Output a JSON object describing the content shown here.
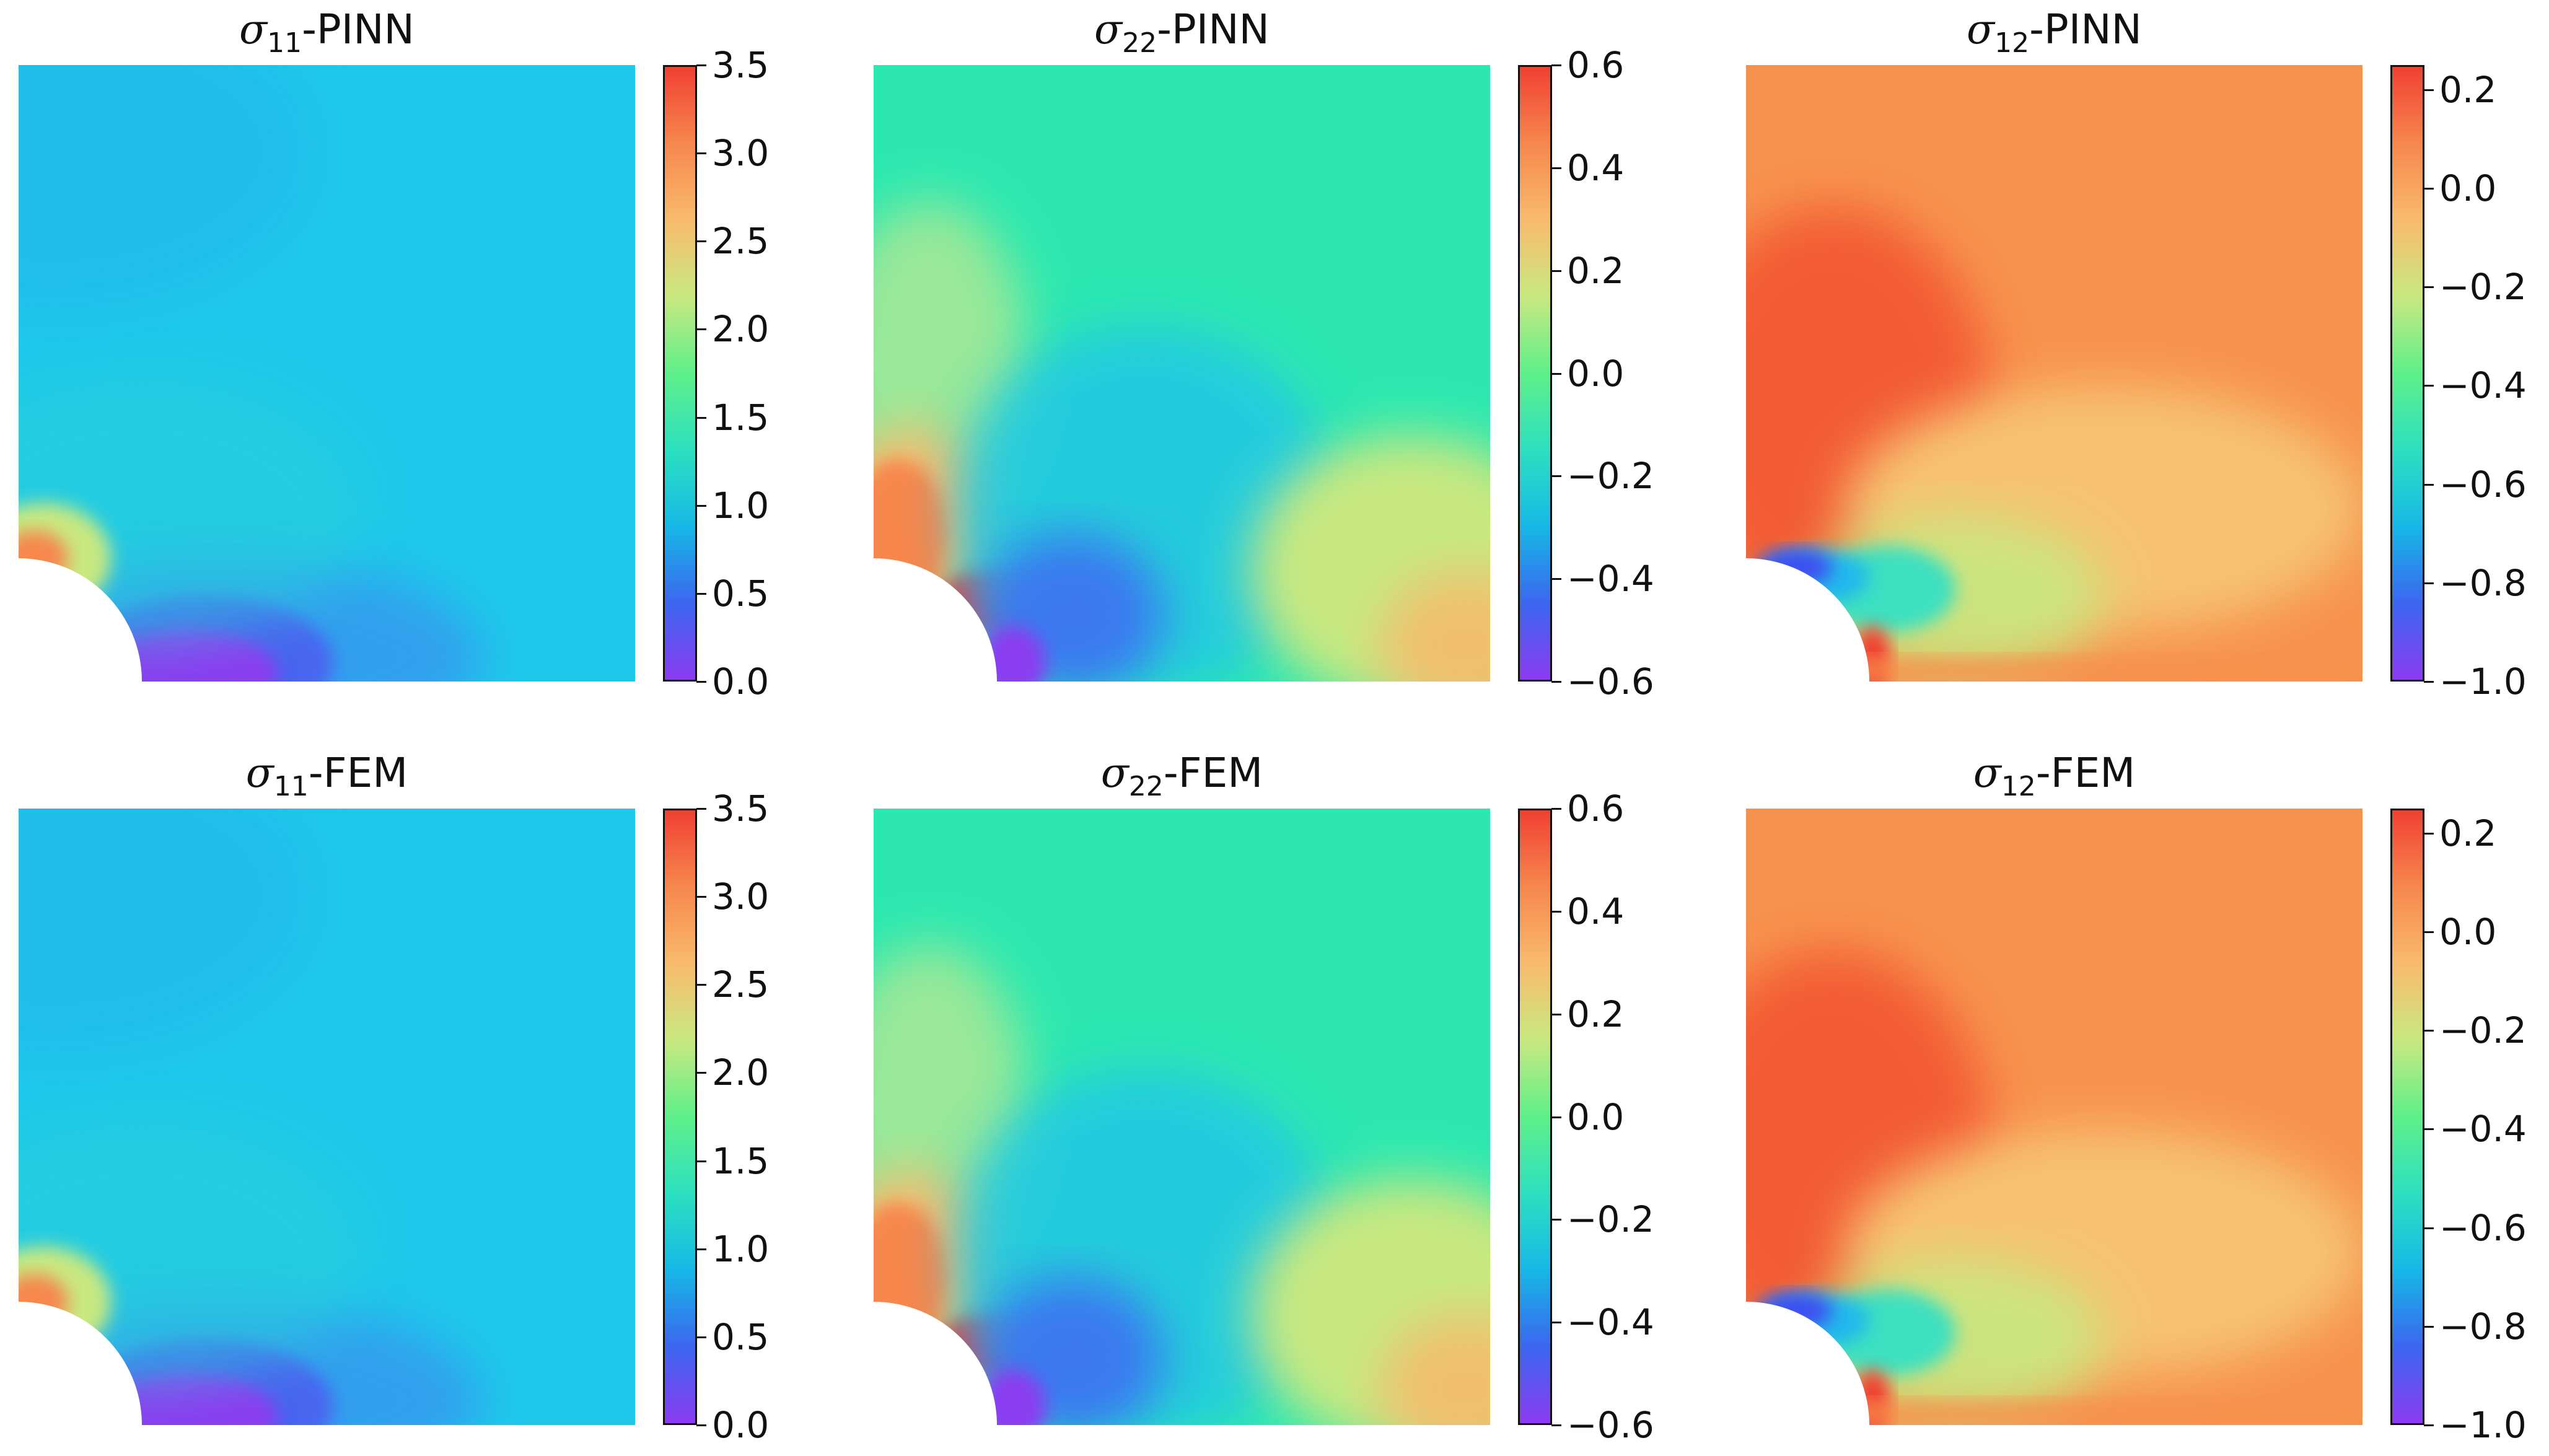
{
  "chart_data": [
    {
      "type": "heatmap",
      "title_symbol": "σ",
      "title_sub": "11",
      "title_suffix": "-PINN",
      "colorbar": {
        "min": 0.0,
        "max": 3.5,
        "ticks": [
          "0.0",
          "0.5",
          "1.0",
          "1.5",
          "2.0",
          "2.5",
          "3.0",
          "3.5"
        ]
      },
      "field": "s11"
    },
    {
      "type": "heatmap",
      "title_symbol": "σ",
      "title_sub": "22",
      "title_suffix": "-PINN",
      "colorbar": {
        "min": -0.6,
        "max": 0.6,
        "ticks": [
          "−0.6",
          "−0.4",
          "−0.2",
          "0.0",
          "0.2",
          "0.4",
          "0.6"
        ]
      },
      "field": "s22"
    },
    {
      "type": "heatmap",
      "title_symbol": "σ",
      "title_sub": "12",
      "title_suffix": "-PINN",
      "colorbar": {
        "min": -1.0,
        "max": 0.25,
        "ticks": [
          "−1.0",
          "−0.8",
          "−0.6",
          "−0.4",
          "−0.2",
          "0.0",
          "0.2"
        ],
        "tick_values": [
          -1.0,
          -0.8,
          -0.6,
          -0.4,
          -0.2,
          0.0,
          0.2
        ]
      },
      "field": "s12"
    },
    {
      "type": "heatmap",
      "title_symbol": "σ",
      "title_sub": "11",
      "title_suffix": "-FEM",
      "colorbar": {
        "min": 0.0,
        "max": 3.5,
        "ticks": [
          "0.0",
          "0.5",
          "1.0",
          "1.5",
          "2.0",
          "2.5",
          "3.0",
          "3.5"
        ]
      },
      "field": "s11"
    },
    {
      "type": "heatmap",
      "title_symbol": "σ",
      "title_sub": "22",
      "title_suffix": "-FEM",
      "colorbar": {
        "min": -0.6,
        "max": 0.6,
        "ticks": [
          "−0.6",
          "−0.4",
          "−0.2",
          "0.0",
          "0.2",
          "0.4",
          "0.6"
        ]
      },
      "field": "s22"
    },
    {
      "type": "heatmap",
      "title_symbol": "σ",
      "title_sub": "12",
      "title_suffix": "-FEM",
      "colorbar": {
        "min": -1.0,
        "max": 0.25,
        "ticks": [
          "−1.0",
          "−0.8",
          "−0.6",
          "−0.4",
          "−0.2",
          "0.0",
          "0.2"
        ],
        "tick_values": [
          -1.0,
          -0.8,
          -0.6,
          -0.4,
          -0.2,
          0.0,
          0.2
        ]
      },
      "field": "s12"
    }
  ],
  "colors": {
    "cmap": [
      "#8b3cf0",
      "#3c66f0",
      "#16b8e6",
      "#2ce0c0",
      "#5ef08a",
      "#c8e880",
      "#f8bb6e",
      "#f7874e",
      "#f04032"
    ]
  }
}
